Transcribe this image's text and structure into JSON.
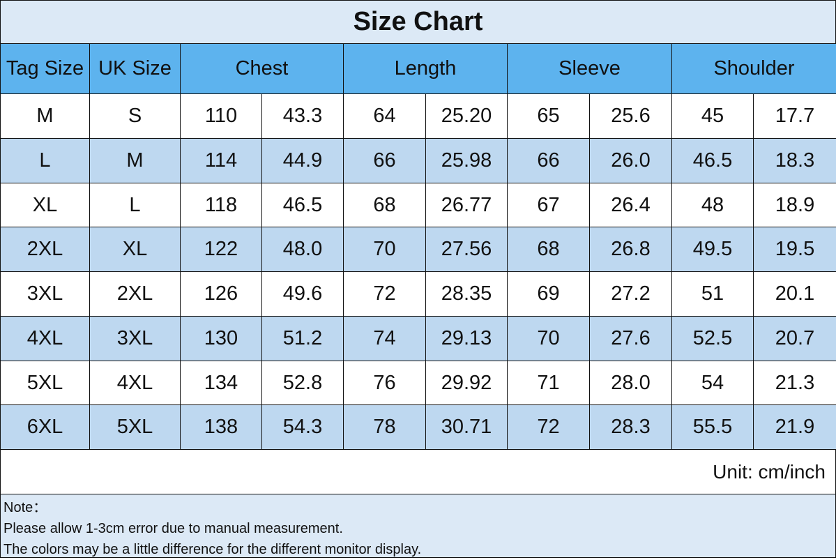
{
  "title": "Size Chart",
  "table": {
    "header": [
      "Tag Size",
      "UK Size",
      "Chest",
      "Length",
      "Sleeve",
      "Shoulder"
    ],
    "rows": [
      [
        "M",
        "S",
        "110",
        "43.3",
        "64",
        "25.20",
        "65",
        "25.6",
        "45",
        "17.7"
      ],
      [
        "L",
        "M",
        "114",
        "44.9",
        "66",
        "25.98",
        "66",
        "26.0",
        "46.5",
        "18.3"
      ],
      [
        "XL",
        "L",
        "118",
        "46.5",
        "68",
        "26.77",
        "67",
        "26.4",
        "48",
        "18.9"
      ],
      [
        "2XL",
        "XL",
        "122",
        "48.0",
        "70",
        "27.56",
        "68",
        "26.8",
        "49.5",
        "19.5"
      ],
      [
        "3XL",
        "2XL",
        "126",
        "49.6",
        "72",
        "28.35",
        "69",
        "27.2",
        "51",
        "20.1"
      ],
      [
        "4XL",
        "3XL",
        "130",
        "51.2",
        "74",
        "29.13",
        "70",
        "27.6",
        "52.5",
        "20.7"
      ],
      [
        "5XL",
        "4XL",
        "134",
        "52.8",
        "76",
        "29.92",
        "71",
        "28.0",
        "54",
        "21.3"
      ],
      [
        "6XL",
        "5XL",
        "138",
        "54.3",
        "78",
        "30.71",
        "72",
        "28.3",
        "55.5",
        "21.9"
      ]
    ]
  },
  "unit": "Unit: cm/inch",
  "note": {
    "label": "Note：",
    "lines": [
      "Please allow 1-3cm error due to manual measurement.",
      "The colors may be a little difference for the different monitor display."
    ]
  }
}
